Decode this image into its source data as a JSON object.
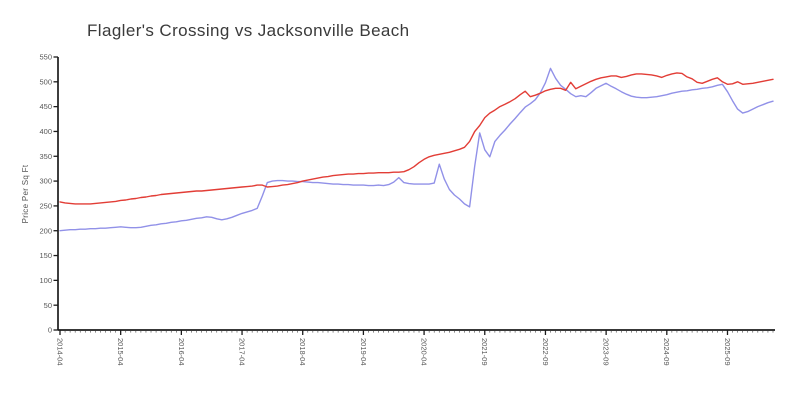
{
  "title": "Flagler's Crossing vs Jacksonville Beach",
  "chart_data": {
    "type": "line",
    "title": "Flagler's Crossing vs Jacksonville Beach",
    "xlabel": "",
    "ylabel": "Price Per Sq Ft",
    "ylim": [
      0,
      550
    ],
    "ytick_step": 50,
    "yticks": [
      0,
      50,
      100,
      150,
      200,
      250,
      300,
      350,
      400,
      450,
      500,
      550
    ],
    "xtick_every": 12,
    "xticks_shown": [
      "2014-04",
      "2015-04",
      "2016-04",
      "2017-04",
      "2018-04",
      "2019-04",
      "2020-04",
      "2021-09",
      "2022-09",
      "2023-09",
      "2024-09",
      "2025-09"
    ],
    "grid": false,
    "legend_position": "none",
    "x": [
      "2014-04",
      "2014-05",
      "2014-06",
      "2014-07",
      "2014-08",
      "2014-09",
      "2014-10",
      "2014-11",
      "2014-12",
      "2015-01",
      "2015-02",
      "2015-03",
      "2015-04",
      "2015-05",
      "2015-06",
      "2015-07",
      "2015-08",
      "2015-09",
      "2015-10",
      "2015-11",
      "2015-12",
      "2016-01",
      "2016-02",
      "2016-03",
      "2016-04",
      "2016-05",
      "2016-06",
      "2016-07",
      "2016-08",
      "2016-09",
      "2016-10",
      "2016-11",
      "2016-12",
      "2017-01",
      "2017-02",
      "2017-03",
      "2017-04",
      "2017-05",
      "2017-06",
      "2017-07",
      "2017-08",
      "2017-09",
      "2017-10",
      "2017-11",
      "2017-12",
      "2018-01",
      "2018-02",
      "2018-03",
      "2018-04",
      "2018-05",
      "2018-06",
      "2018-07",
      "2018-08",
      "2018-09",
      "2018-10",
      "2018-11",
      "2018-12",
      "2019-01",
      "2019-02",
      "2019-03",
      "2019-04",
      "2019-05",
      "2019-06",
      "2019-07",
      "2019-08",
      "2019-09",
      "2019-10",
      "2019-11",
      "2019-12",
      "2020-01",
      "2020-02",
      "2020-03",
      "2020-04",
      "2020-10",
      "2020-11",
      "2020-12",
      "2021-01",
      "2021-02",
      "2021-03",
      "2021-04",
      "2021-05",
      "2021-06",
      "2021-07",
      "2021-08",
      "2021-09",
      "2021-10",
      "2021-11",
      "2021-12",
      "2022-01",
      "2022-02",
      "2022-03",
      "2022-04",
      "2022-05",
      "2022-06",
      "2022-07",
      "2022-08",
      "2022-09",
      "2022-10",
      "2022-11",
      "2022-12",
      "2023-01",
      "2023-02",
      "2023-03",
      "2023-04",
      "2023-05",
      "2023-06",
      "2023-07",
      "2023-08",
      "2023-09",
      "2023-10",
      "2023-11",
      "2023-12",
      "2024-01",
      "2024-02",
      "2024-03",
      "2024-04",
      "2024-05",
      "2024-06",
      "2024-07",
      "2024-08",
      "2024-09",
      "2024-10",
      "2024-11",
      "2024-12",
      "2025-01",
      "2025-02",
      "2025-03",
      "2025-04",
      "2025-05",
      "2025-06",
      "2025-07",
      "2025-08",
      "2025-09",
      "2025-10",
      "2025-11",
      "2025-12",
      "2026-01",
      "2026-02",
      "2026-03",
      "2026-04",
      "2026-05",
      "2026-06"
    ],
    "series": [
      {
        "name": "Flagler's Crossing",
        "color": "#9191e8",
        "values": [
          200,
          201,
          202,
          202,
          203,
          203,
          204,
          204,
          205,
          205,
          206,
          207,
          208,
          207,
          206,
          206,
          207,
          209,
          211,
          212,
          214,
          215,
          217,
          218,
          220,
          221,
          223,
          225,
          226,
          228,
          227,
          224,
          222,
          224,
          227,
          231,
          235,
          238,
          241,
          245,
          270,
          297,
          300,
          301,
          301,
          300,
          300,
          299,
          299,
          298,
          297,
          297,
          296,
          295,
          294,
          294,
          293,
          293,
          292,
          292,
          292,
          291,
          291,
          292,
          291,
          293,
          298,
          307,
          297,
          295,
          294,
          294,
          294,
          294,
          296,
          334,
          304,
          283,
          272,
          264,
          254,
          248,
          330,
          397,
          363,
          349,
          380,
          392,
          403,
          415,
          426,
          438,
          449,
          456,
          464,
          478,
          498,
          527,
          507,
          493,
          485,
          476,
          470,
          472,
          470,
          478,
          487,
          492,
          497,
          491,
          486,
          480,
          475,
          471,
          469,
          468,
          468,
          469,
          470,
          472,
          474,
          477,
          479,
          481,
          482,
          484,
          485,
          487,
          488,
          490,
          493,
          495,
          480,
          462,
          445,
          437,
          440,
          445,
          450,
          454,
          458,
          461
        ]
      },
      {
        "name": "Jacksonville Beach",
        "color": "#e23d36",
        "values": [
          258,
          256,
          255,
          254,
          254,
          254,
          254,
          255,
          256,
          257,
          258,
          259,
          261,
          262,
          264,
          265,
          267,
          268,
          270,
          271,
          273,
          274,
          275,
          276,
          277,
          278,
          279,
          280,
          280,
          281,
          282,
          283,
          284,
          285,
          286,
          287,
          288,
          289,
          290,
          292,
          292,
          288,
          289,
          290,
          292,
          293,
          295,
          297,
          300,
          302,
          304,
          306,
          308,
          309,
          311,
          312,
          313,
          314,
          314,
          315,
          315,
          316,
          316,
          317,
          317,
          317,
          318,
          318,
          319,
          323,
          329,
          337,
          344,
          349,
          352,
          354,
          356,
          358,
          361,
          364,
          368,
          380,
          400,
          412,
          428,
          437,
          443,
          450,
          455,
          460,
          466,
          474,
          481,
          470,
          473,
          477,
          482,
          485,
          487,
          487,
          483,
          499,
          486,
          491,
          496,
          501,
          505,
          508,
          510,
          512,
          512,
          509,
          511,
          514,
          516,
          516,
          515,
          514,
          512,
          509,
          513,
          516,
          518,
          517,
          510,
          506,
          499,
          497,
          501,
          505,
          508,
          500,
          495,
          496,
          500,
          495,
          496,
          497,
          499,
          501,
          503,
          505
        ]
      }
    ],
    "axis_color": "#1c1c1c",
    "tick_label_color": "#585858"
  }
}
